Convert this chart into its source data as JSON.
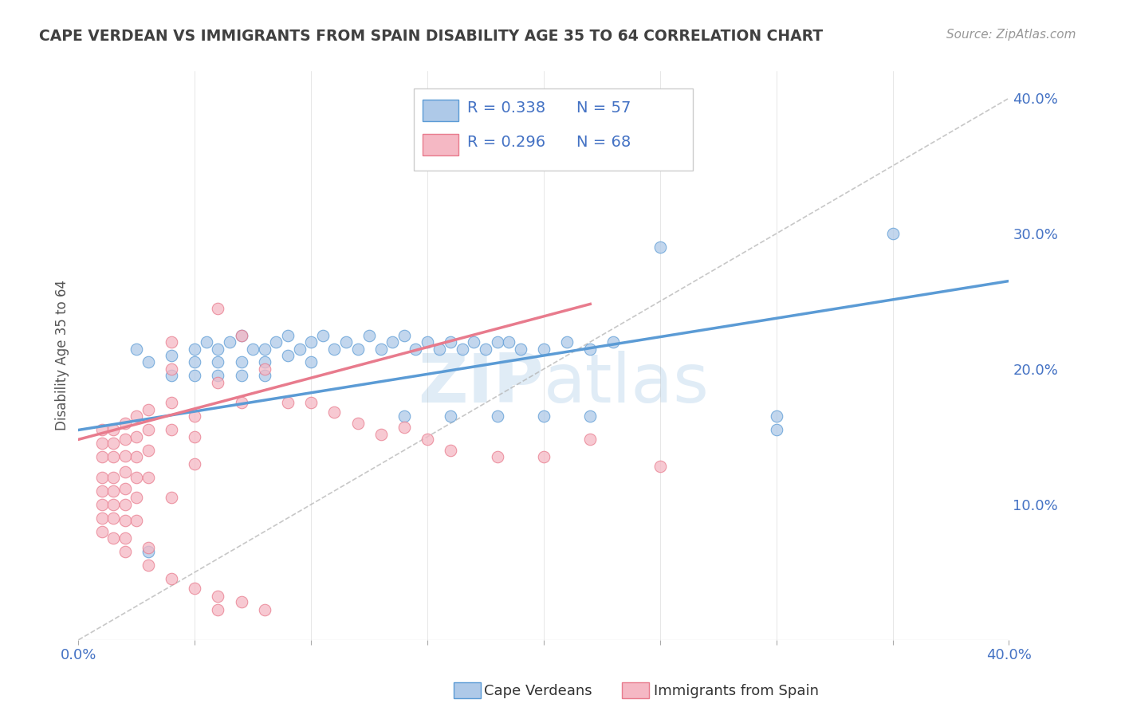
{
  "title": "CAPE VERDEAN VS IMMIGRANTS FROM SPAIN DISABILITY AGE 35 TO 64 CORRELATION CHART",
  "source": "Source: ZipAtlas.com",
  "ylabel": "Disability Age 35 to 64",
  "xlim": [
    0.0,
    0.4
  ],
  "ylim": [
    0.0,
    0.42
  ],
  "r_blue": 0.338,
  "n_blue": 57,
  "r_pink": 0.296,
  "n_pink": 68,
  "color_blue": "#5b9bd5",
  "color_pink": "#e87b8d",
  "color_blue_fill": "#aec9e8",
  "color_pink_fill": "#f5b8c4",
  "legend_blue_label": "Cape Verdeans",
  "legend_pink_label": "Immigrants from Spain",
  "blue_scatter": [
    [
      0.025,
      0.215
    ],
    [
      0.03,
      0.205
    ],
    [
      0.04,
      0.21
    ],
    [
      0.05,
      0.215
    ],
    [
      0.055,
      0.22
    ],
    [
      0.06,
      0.215
    ],
    [
      0.065,
      0.22
    ],
    [
      0.07,
      0.225
    ],
    [
      0.075,
      0.215
    ],
    [
      0.08,
      0.215
    ],
    [
      0.085,
      0.22
    ],
    [
      0.09,
      0.225
    ],
    [
      0.095,
      0.215
    ],
    [
      0.1,
      0.22
    ],
    [
      0.105,
      0.225
    ],
    [
      0.11,
      0.215
    ],
    [
      0.115,
      0.22
    ],
    [
      0.12,
      0.215
    ],
    [
      0.125,
      0.225
    ],
    [
      0.13,
      0.215
    ],
    [
      0.135,
      0.22
    ],
    [
      0.14,
      0.225
    ],
    [
      0.145,
      0.215
    ],
    [
      0.15,
      0.22
    ],
    [
      0.155,
      0.215
    ],
    [
      0.16,
      0.22
    ],
    [
      0.165,
      0.215
    ],
    [
      0.17,
      0.22
    ],
    [
      0.175,
      0.215
    ],
    [
      0.18,
      0.22
    ],
    [
      0.185,
      0.22
    ],
    [
      0.19,
      0.215
    ],
    [
      0.2,
      0.215
    ],
    [
      0.21,
      0.22
    ],
    [
      0.22,
      0.215
    ],
    [
      0.23,
      0.22
    ],
    [
      0.05,
      0.205
    ],
    [
      0.06,
      0.205
    ],
    [
      0.07,
      0.205
    ],
    [
      0.08,
      0.205
    ],
    [
      0.09,
      0.21
    ],
    [
      0.1,
      0.205
    ],
    [
      0.04,
      0.195
    ],
    [
      0.05,
      0.195
    ],
    [
      0.06,
      0.195
    ],
    [
      0.07,
      0.195
    ],
    [
      0.08,
      0.195
    ],
    [
      0.25,
      0.29
    ],
    [
      0.35,
      0.3
    ],
    [
      0.3,
      0.155
    ],
    [
      0.3,
      0.165
    ],
    [
      0.22,
      0.165
    ],
    [
      0.2,
      0.165
    ],
    [
      0.18,
      0.165
    ],
    [
      0.16,
      0.165
    ],
    [
      0.14,
      0.165
    ],
    [
      0.03,
      0.065
    ]
  ],
  "pink_scatter": [
    [
      0.01,
      0.155
    ],
    [
      0.01,
      0.145
    ],
    [
      0.01,
      0.135
    ],
    [
      0.01,
      0.12
    ],
    [
      0.01,
      0.11
    ],
    [
      0.01,
      0.1
    ],
    [
      0.01,
      0.09
    ],
    [
      0.01,
      0.08
    ],
    [
      0.015,
      0.155
    ],
    [
      0.015,
      0.145
    ],
    [
      0.015,
      0.135
    ],
    [
      0.015,
      0.12
    ],
    [
      0.015,
      0.11
    ],
    [
      0.015,
      0.1
    ],
    [
      0.015,
      0.09
    ],
    [
      0.015,
      0.075
    ],
    [
      0.02,
      0.16
    ],
    [
      0.02,
      0.148
    ],
    [
      0.02,
      0.136
    ],
    [
      0.02,
      0.124
    ],
    [
      0.02,
      0.112
    ],
    [
      0.02,
      0.1
    ],
    [
      0.02,
      0.088
    ],
    [
      0.025,
      0.165
    ],
    [
      0.025,
      0.15
    ],
    [
      0.025,
      0.135
    ],
    [
      0.025,
      0.12
    ],
    [
      0.025,
      0.105
    ],
    [
      0.025,
      0.088
    ],
    [
      0.03,
      0.17
    ],
    [
      0.03,
      0.155
    ],
    [
      0.03,
      0.14
    ],
    [
      0.03,
      0.12
    ],
    [
      0.04,
      0.22
    ],
    [
      0.04,
      0.2
    ],
    [
      0.04,
      0.175
    ],
    [
      0.04,
      0.155
    ],
    [
      0.04,
      0.105
    ],
    [
      0.05,
      0.165
    ],
    [
      0.05,
      0.15
    ],
    [
      0.05,
      0.13
    ],
    [
      0.06,
      0.245
    ],
    [
      0.06,
      0.19
    ],
    [
      0.07,
      0.225
    ],
    [
      0.07,
      0.175
    ],
    [
      0.08,
      0.2
    ],
    [
      0.09,
      0.175
    ],
    [
      0.1,
      0.175
    ],
    [
      0.11,
      0.168
    ],
    [
      0.12,
      0.16
    ],
    [
      0.13,
      0.152
    ],
    [
      0.14,
      0.157
    ],
    [
      0.15,
      0.148
    ],
    [
      0.16,
      0.14
    ],
    [
      0.18,
      0.135
    ],
    [
      0.2,
      0.135
    ],
    [
      0.22,
      0.148
    ],
    [
      0.25,
      0.128
    ],
    [
      0.02,
      0.065
    ],
    [
      0.03,
      0.055
    ],
    [
      0.04,
      0.045
    ],
    [
      0.05,
      0.038
    ],
    [
      0.06,
      0.032
    ],
    [
      0.06,
      0.022
    ],
    [
      0.07,
      0.028
    ],
    [
      0.08,
      0.022
    ],
    [
      0.02,
      0.075
    ],
    [
      0.03,
      0.068
    ]
  ],
  "blue_line_x": [
    0.0,
    0.4
  ],
  "blue_line_y": [
    0.155,
    0.265
  ],
  "pink_line_x": [
    0.0,
    0.22
  ],
  "pink_line_y": [
    0.148,
    0.248
  ],
  "diag_line_x": [
    0.0,
    0.4
  ],
  "diag_line_y": [
    0.0,
    0.4
  ],
  "background_color": "#ffffff",
  "grid_color": "#cccccc",
  "title_color": "#404040",
  "axis_label_color": "#4472c4"
}
